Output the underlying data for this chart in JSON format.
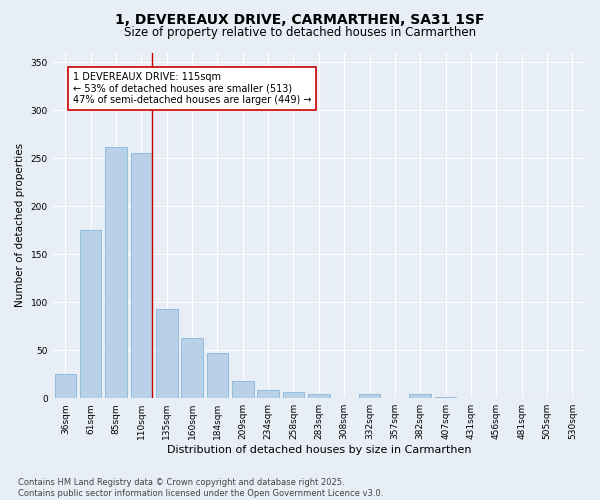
{
  "title_line1": "1, DEVEREAUX DRIVE, CARMARTHEN, SA31 1SF",
  "title_line2": "Size of property relative to detached houses in Carmarthen",
  "xlabel": "Distribution of detached houses by size in Carmarthen",
  "ylabel": "Number of detached properties",
  "categories": [
    "36sqm",
    "61sqm",
    "85sqm",
    "110sqm",
    "135sqm",
    "160sqm",
    "184sqm",
    "209sqm",
    "234sqm",
    "258sqm",
    "283sqm",
    "308sqm",
    "332sqm",
    "357sqm",
    "382sqm",
    "407sqm",
    "431sqm",
    "456sqm",
    "481sqm",
    "505sqm",
    "530sqm"
  ],
  "values": [
    25,
    175,
    262,
    255,
    93,
    63,
    47,
    18,
    9,
    6,
    4,
    0,
    4,
    0,
    4,
    1,
    0,
    0,
    0,
    0,
    0
  ],
  "bar_color": "#b8d0e8",
  "bar_edge_color": "#7aafd4",
  "vline_index": 3.42,
  "vline_color": "#cc0000",
  "annotation_line1": "1 DEVEREAUX DRIVE: 115sqm",
  "annotation_line2": "← 53% of detached houses are smaller (513)",
  "annotation_line3": "47% of semi-detached houses are larger (449) →",
  "annotation_box_color": "#ffffff",
  "annotation_box_edge_color": "#cc0000",
  "ylim": [
    0,
    360
  ],
  "yticks": [
    0,
    50,
    100,
    150,
    200,
    250,
    300,
    350
  ],
  "fig_bg_color": "#e8eef5",
  "plot_bg_color": "#e8eef5",
  "grid_color": "#ffffff",
  "footnote": "Contains HM Land Registry data © Crown copyright and database right 2025.\nContains public sector information licensed under the Open Government Licence v3.0.",
  "title_fontsize": 10,
  "subtitle_fontsize": 8.5,
  "annotation_fontsize": 7,
  "xlabel_fontsize": 8,
  "ylabel_fontsize": 7.5,
  "tick_fontsize": 6.5,
  "footnote_fontsize": 6
}
